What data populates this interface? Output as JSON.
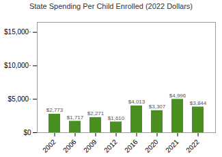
{
  "chart_data": {
    "type": "bar",
    "title": "State Spending Per Child Enrolled (2022 Dollars)",
    "categories": [
      "2002",
      "2006",
      "2009",
      "2012",
      "2016",
      "2020",
      "2021",
      "2022"
    ],
    "values": [
      2773,
      1717,
      2271,
      1610,
      4013,
      3307,
      4996,
      3844
    ],
    "value_labels": [
      "$2,773",
      "$1,717",
      "$2,271",
      "$1,610",
      "$4,013",
      "$3,307",
      "$4,996",
      "$3,844"
    ],
    "data_labels": true,
    "color": "#4a9020",
    "ylim": [
      0,
      16500
    ],
    "yticks": [
      {
        "value": 0,
        "label": "$0"
      },
      {
        "value": 5000,
        "label": "$5,000·"
      },
      {
        "value": 10000,
        "label": "$10,000·"
      },
      {
        "value": 15000,
        "label": "$15,000·"
      }
    ],
    "grid": false
  }
}
